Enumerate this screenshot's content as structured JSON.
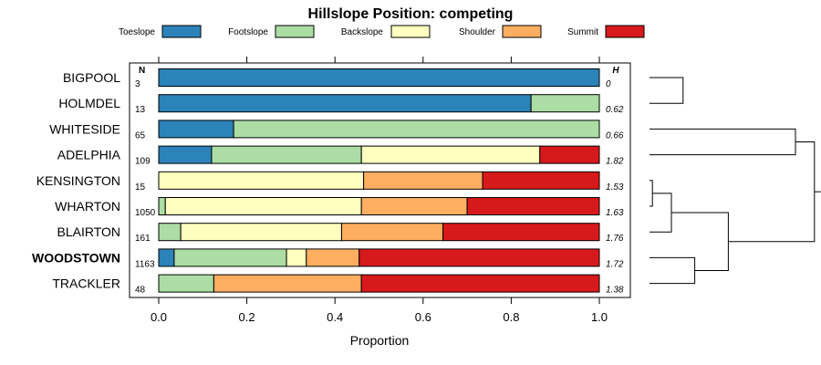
{
  "chart_data": {
    "type": "bar",
    "orientation": "horizontal",
    "stacked": true,
    "title": "Hillslope Position: competing",
    "xlabel": "Proportion",
    "ylabel": "",
    "xlim": [
      0,
      1
    ],
    "xticks": [
      "0.0",
      "0.2",
      "0.4",
      "0.6",
      "0.8",
      "1.0"
    ],
    "grid": false,
    "legend_position": "top",
    "categories": [
      "BIGPOOL",
      "HOLMDEL",
      "WHITESIDE",
      "ADELPHIA",
      "KENSINGTON",
      "WHARTON",
      "BLAIRTON",
      "WOODSTOWN",
      "TRACKLER"
    ],
    "bold_category": "WOODSTOWN",
    "n_header": "N",
    "n_values": [
      "3",
      "13",
      "65",
      "109",
      "15",
      "1050",
      "161",
      "1163",
      "48"
    ],
    "h_header": "H",
    "h_values": [
      "0",
      "0.62",
      "0.66",
      "1.82",
      "1.53",
      "1.63",
      "1.76",
      "1.72",
      "1.38"
    ],
    "series": [
      {
        "name": "Toeslope",
        "color": "#2B83BA",
        "values": [
          1.0,
          0.845,
          0.17,
          0.12,
          0.0,
          0.0,
          0.0,
          0.035,
          0.0
        ]
      },
      {
        "name": "Footslope",
        "color": "#ABDDA4",
        "values": [
          0.0,
          0.155,
          0.83,
          0.34,
          0.0,
          0.015,
          0.05,
          0.255,
          0.125
        ]
      },
      {
        "name": "Backslope",
        "color": "#FFFFBF",
        "values": [
          0.0,
          0.0,
          0.0,
          0.405,
          0.465,
          0.445,
          0.365,
          0.045,
          0.0
        ]
      },
      {
        "name": "Shoulder",
        "color": "#FDAE61",
        "values": [
          0.0,
          0.0,
          0.0,
          0.0,
          0.27,
          0.24,
          0.23,
          0.12,
          0.335
        ]
      },
      {
        "name": "Summit",
        "color": "#D7191C",
        "values": [
          0.0,
          0.0,
          0.0,
          0.135,
          0.265,
          0.3,
          0.355,
          0.545,
          0.54
        ]
      }
    ],
    "dendrogram": {
      "side": "right",
      "merges": [
        [
          0,
          1,
          0.46
        ],
        [
          4,
          5,
          0.04
        ],
        [
          10,
          6,
          0.3
        ],
        [
          7,
          8,
          0.62
        ],
        [
          11,
          12,
          1.08
        ],
        [
          2,
          3,
          2.0
        ],
        [
          14,
          13,
          2.26
        ]
      ]
    }
  }
}
